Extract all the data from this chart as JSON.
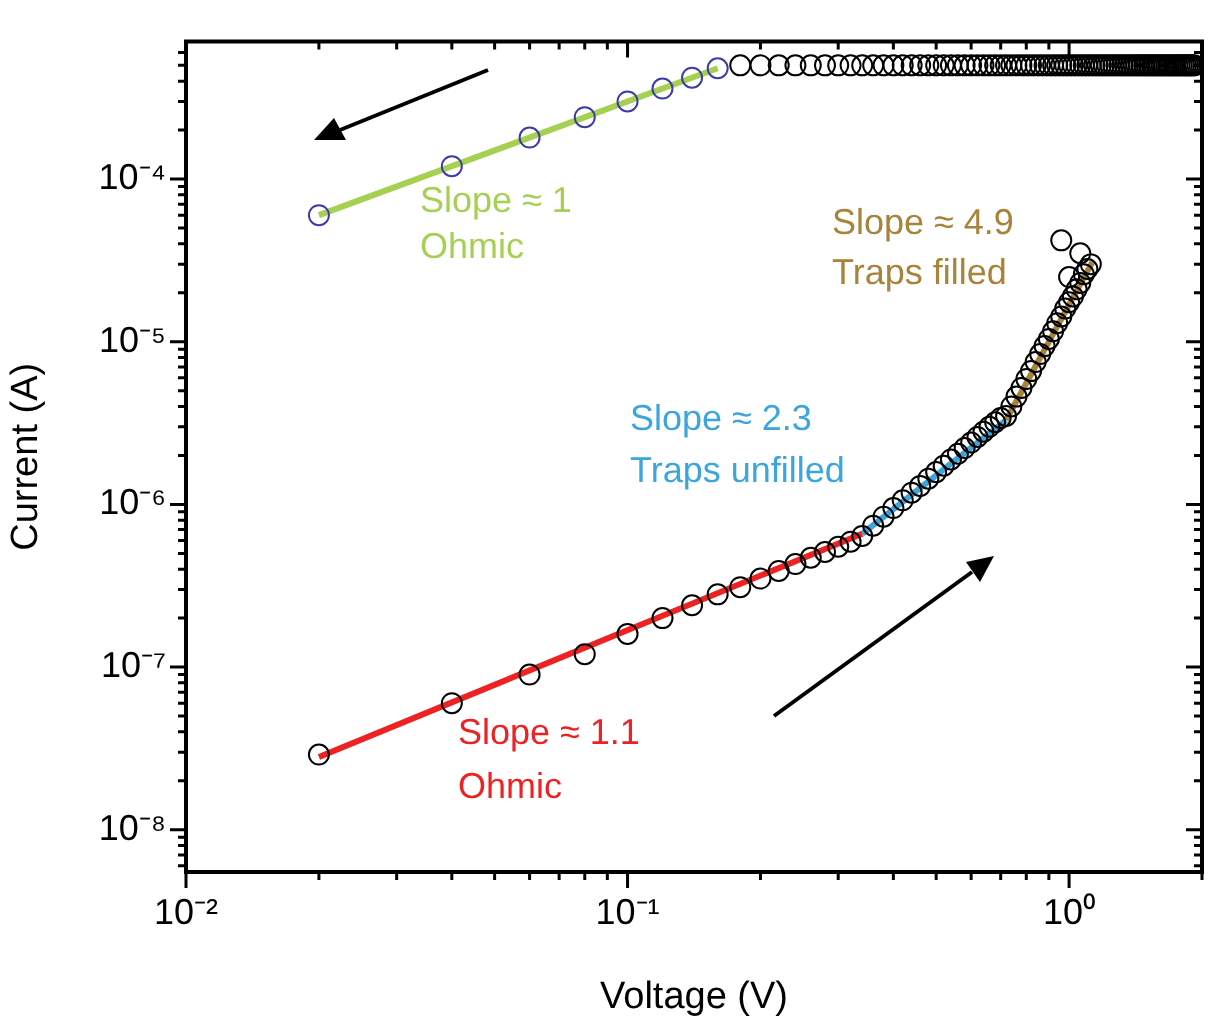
{
  "chart_data": {
    "type": "scatter",
    "xlabel": "Voltage (V)",
    "ylabel": "Current (A)",
    "log": "xy",
    "marker": "circle",
    "xlim": [
      0.01,
      2
    ],
    "ylim": [
      5.5e-09,
      0.0007
    ],
    "xticks": [
      {
        "value": 0.01,
        "label": "10⁻²"
      },
      {
        "value": 0.02,
        "label": null
      },
      {
        "value": 0.03,
        "label": null
      },
      {
        "value": 0.04,
        "label": null
      },
      {
        "value": 0.05,
        "label": null
      },
      {
        "value": 0.06,
        "label": null
      },
      {
        "value": 0.07,
        "label": null
      },
      {
        "value": 0.08,
        "label": null
      },
      {
        "value": 0.09,
        "label": null
      },
      {
        "value": 0.1,
        "label": "10⁻¹"
      },
      {
        "value": 0.2,
        "label": null
      },
      {
        "value": 0.3,
        "label": null
      },
      {
        "value": 0.4,
        "label": null
      },
      {
        "value": 0.5,
        "label": null
      },
      {
        "value": 0.6,
        "label": null
      },
      {
        "value": 0.7,
        "label": null
      },
      {
        "value": 0.8,
        "label": null
      },
      {
        "value": 0.9,
        "label": null
      },
      {
        "value": 1,
        "label": "10⁰"
      },
      {
        "value": 2,
        "label": null
      }
    ],
    "yticks": [
      {
        "value": 6e-09,
        "label": null
      },
      {
        "value": 7e-09,
        "label": null
      },
      {
        "value": 8e-09,
        "label": null
      },
      {
        "value": 9e-09,
        "label": null
      },
      {
        "value": 1e-08,
        "label": "10⁻⁸"
      },
      {
        "value": 2e-08,
        "label": null
      },
      {
        "value": 3e-08,
        "label": null
      },
      {
        "value": 4e-08,
        "label": null
      },
      {
        "value": 5e-08,
        "label": null
      },
      {
        "value": 6e-08,
        "label": null
      },
      {
        "value": 7e-08,
        "label": null
      },
      {
        "value": 8e-08,
        "label": null
      },
      {
        "value": 9e-08,
        "label": null
      },
      {
        "value": 1e-07,
        "label": "10⁻⁷"
      },
      {
        "value": 2e-07,
        "label": null
      },
      {
        "value": 3e-07,
        "label": null
      },
      {
        "value": 4e-07,
        "label": null
      },
      {
        "value": 5e-07,
        "label": null
      },
      {
        "value": 6e-07,
        "label": null
      },
      {
        "value": 7e-07,
        "label": null
      },
      {
        "value": 8e-07,
        "label": null
      },
      {
        "value": 9e-07,
        "label": null
      },
      {
        "value": 1e-06,
        "label": "10⁻⁶"
      },
      {
        "value": 2e-06,
        "label": null
      },
      {
        "value": 3e-06,
        "label": null
      },
      {
        "value": 4e-06,
        "label": null
      },
      {
        "value": 5e-06,
        "label": null
      },
      {
        "value": 6e-06,
        "label": null
      },
      {
        "value": 7e-06,
        "label": null
      },
      {
        "value": 8e-06,
        "label": null
      },
      {
        "value": 9e-06,
        "label": null
      },
      {
        "value": 1e-05,
        "label": "10⁻⁵"
      },
      {
        "value": 2e-05,
        "label": null
      },
      {
        "value": 3e-05,
        "label": null
      },
      {
        "value": 4e-05,
        "label": null
      },
      {
        "value": 5e-05,
        "label": null
      },
      {
        "value": 6e-05,
        "label": null
      },
      {
        "value": 7e-05,
        "label": null
      },
      {
        "value": 8e-05,
        "label": null
      },
      {
        "value": 9e-05,
        "label": null
      },
      {
        "value": 0.0001,
        "label": "10⁻⁴"
      },
      {
        "value": 0.0002,
        "label": null
      },
      {
        "value": 0.0003,
        "label": null
      },
      {
        "value": 0.0004,
        "label": null
      },
      {
        "value": 0.0005,
        "label": null
      },
      {
        "value": 0.0006,
        "label": null
      }
    ],
    "series": [
      {
        "color": "#3c3ca8",
        "x": [
          0.02,
          0.04,
          0.06,
          0.08,
          0.1,
          0.12,
          0.14,
          0.16
        ],
        "values": [
          6e-05,
          0.00012,
          0.00018,
          0.00024,
          0.0003,
          0.00036,
          0.00042,
          0.00048
        ]
      },
      {
        "color": "#000000",
        "x": [
          0.18,
          0.2,
          0.22,
          0.24,
          0.26,
          0.28,
          0.3,
          0.32,
          0.34,
          0.36,
          0.38,
          0.4,
          0.42,
          0.44,
          0.46,
          0.48,
          0.5,
          0.52,
          0.54,
          0.56,
          0.58,
          0.6,
          0.62,
          0.64,
          0.66,
          0.68,
          0.7,
          0.72,
          0.74,
          0.76,
          0.78,
          0.8,
          0.82,
          0.84,
          0.86,
          0.88,
          0.9,
          0.92,
          0.94,
          0.96,
          0.98,
          1,
          1.02,
          1.04,
          1.06,
          1.08,
          1.1,
          1.12,
          1.14,
          1.16,
          1.18,
          1.2,
          1.22,
          1.24,
          1.26,
          1.28,
          1.3,
          1.32,
          1.34,
          1.36,
          1.38,
          1.4,
          1.42,
          1.44,
          1.46,
          1.48,
          1.5,
          1.52,
          1.54,
          1.56,
          1.58,
          1.6,
          1.62,
          1.64,
          1.66,
          1.68,
          1.7,
          1.72,
          1.74,
          1.76,
          1.78,
          1.8,
          1.82,
          1.84,
          1.86,
          1.88,
          1.9,
          1.92
        ],
        "values": [
          0.0005,
          0.0005,
          0.0005,
          0.0005,
          0.0005,
          0.0005,
          0.0005,
          0.0005,
          0.0005,
          0.0005,
          0.0005,
          0.0005,
          0.0005,
          0.0005,
          0.0005,
          0.0005,
          0.0005,
          0.0005,
          0.0005,
          0.0005,
          0.0005,
          0.0005,
          0.0005,
          0.0005,
          0.0005,
          0.0005,
          0.0005,
          0.0005,
          0.0005,
          0.0005,
          0.0005,
          0.0005,
          0.0005,
          0.0005,
          0.0005,
          0.0005,
          0.0005,
          0.0005,
          0.0005,
          0.0005,
          0.0005,
          0.0005,
          0.0005,
          0.0005,
          0.0005,
          0.0005,
          0.0005,
          0.0005,
          0.0005,
          0.0005,
          0.0005,
          0.0005,
          0.0005,
          0.0005,
          0.0005,
          0.0005,
          0.0005,
          0.0005,
          0.0005,
          0.0005,
          0.0005,
          0.0005,
          0.0005,
          0.0005,
          0.0005,
          0.0005,
          0.0005,
          0.0005,
          0.0005,
          0.0005,
          0.0005,
          0.0005,
          0.0005,
          0.0005,
          0.0005,
          0.0005,
          0.0005,
          0.0005,
          0.0005,
          0.0005,
          0.0005,
          0.0005,
          0.0005,
          0.0005,
          0.0005,
          0.0005,
          0.0005,
          0.0005
        ]
      },
      {
        "color": "#000000",
        "x": [
          0.02,
          0.04,
          0.06,
          0.08,
          0.1,
          0.12,
          0.14,
          0.16,
          0.18,
          0.2,
          0.22,
          0.24,
          0.26,
          0.28,
          0.3,
          0.32,
          0.34,
          0.36,
          0.38,
          0.4,
          0.42,
          0.44,
          0.46,
          0.48,
          0.5,
          0.52,
          0.54,
          0.56,
          0.58,
          0.6,
          0.62,
          0.64,
          0.66,
          0.68,
          0.7,
          0.72,
          0.74,
          0.76,
          0.78,
          0.8,
          0.82,
          0.84,
          0.86,
          0.88,
          0.9,
          0.92,
          0.94,
          0.96,
          0.98,
          1,
          1.02,
          1.04,
          1.06,
          1.08,
          1.1,
          1.12,
          0.96,
          1.06,
          1
        ],
        "values": [
          2.9e-08,
          6e-08,
          9e-08,
          1.2e-07,
          1.6e-07,
          2e-07,
          2.4e-07,
          2.8e-07,
          3.1e-07,
          3.5e-07,
          3.9e-07,
          4.3e-07,
          4.7e-07,
          5.1e-07,
          5.5e-07,
          5.9e-07,
          6.4e-07,
          7.4e-07,
          8.4e-07,
          9.5e-07,
          1.06e-06,
          1.18e-06,
          1.3e-06,
          1.44e-06,
          1.58e-06,
          1.73e-06,
          1.89e-06,
          2.05e-06,
          2.22e-06,
          2.4e-06,
          2.6e-06,
          2.8e-06,
          3e-06,
          3.2e-06,
          3.4e-06,
          3.5e-06,
          4e-06,
          4.6e-06,
          5.2e-06,
          5.9e-06,
          6.6e-06,
          7.5e-06,
          8.4e-06,
          9.4e-06,
          1.04e-05,
          1.16e-05,
          1.3e-05,
          1.43e-05,
          1.6e-05,
          1.75e-05,
          1.9e-05,
          2.1e-05,
          2.3e-05,
          2.6e-05,
          2.8e-05,
          3e-05,
          4.2e-05,
          3.5e-05,
          2.5e-05
        ]
      },
      {
        "type": "line",
        "marker": "none",
        "color": "#a6d052",
        "x": [
          0.02,
          0.16
        ],
        "values": [
          6e-05,
          0.00048
        ]
      },
      {
        "type": "line",
        "marker": "none",
        "color": "#ee2222",
        "x": [
          0.02,
          0.34
        ],
        "values": [
          2.8e-08,
          6.6e-07
        ]
      },
      {
        "type": "line",
        "marker": "none",
        "color": "#3aa6dc",
        "x": [
          0.34,
          0.72
        ],
        "values": [
          6.6e-07,
          3.3e-06
        ]
      },
      {
        "type": "line",
        "marker": "none",
        "color": "#a8833a",
        "x": [
          0.72,
          1.13
        ],
        "values": [
          3.3e-06,
          3.1e-05
        ]
      }
    ],
    "annotations": [
      "Slope ≈ 1",
      "Ohmic",
      "Slope ≈ 1.1",
      "Ohmic",
      "Slope ≈ 2.3",
      "Traps unfilled",
      "Slope ≈ 4.9",
      "Traps filled"
    ]
  }
}
